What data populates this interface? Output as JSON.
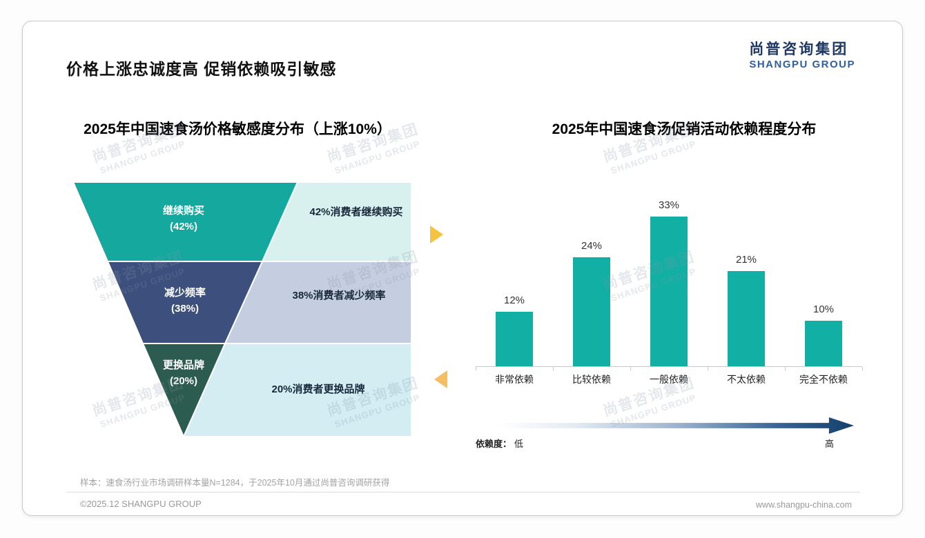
{
  "page": {
    "title": "价格上涨忠诚度高 促销依赖吸引敏感",
    "logo": {
      "cn": "尚普咨询集团",
      "en": "SHANGPU GROUP"
    },
    "watermark": {
      "cn": "尚普咨询集团",
      "en": "SHANGPU GROUP"
    },
    "sample_note": "样本：速食汤行业市场调研样本量N=1284，于2025年10月通过尚普咨询调研获得",
    "footer": {
      "left": "©2025.12 SHANGPU GROUP",
      "right": "www.shangpu-china.com"
    }
  },
  "chart_data": [
    {
      "type": "funnel",
      "title": "2025年中国速食汤价格敏感度分布（上涨10%）",
      "categories": [
        "继续购买",
        "减少频率",
        "更换品牌"
      ],
      "values": [
        42,
        38,
        20
      ],
      "levels": [
        {
          "label": "继续购买",
          "pct_label": "(42%)",
          "desc": "42%消费者继续购买",
          "color": "#14A89E",
          "bg": "#D9F1EE"
        },
        {
          "label": "减少频率",
          "pct_label": "(38%)",
          "desc": "38%消费者减少频率",
          "color": "#3C4F7D",
          "bg": "#C5CEE0"
        },
        {
          "label": "更换品牌",
          "pct_label": "(20%)",
          "desc": "20%消费者更换品牌",
          "color": "#2C5B4F",
          "bg": "#D3EDF3"
        }
      ],
      "arrow_right_color": "#F5C242",
      "arrow_left_color": "#F6BE63"
    },
    {
      "type": "bar",
      "title": "2025年中国速食汤促销活动依赖程度分布",
      "categories": [
        "非常依赖",
        "比较依赖",
        "一般依赖",
        "不太依赖",
        "完全不依赖"
      ],
      "values": [
        12,
        24,
        33,
        21,
        10
      ],
      "value_labels": [
        "12%",
        "24%",
        "33%",
        "21%",
        "10%"
      ],
      "bar_color": "#12AFA5",
      "ylim": [
        0,
        35
      ],
      "grid": false,
      "axis_note": {
        "label": "依赖度：",
        "low": "低",
        "high": "高"
      }
    }
  ]
}
